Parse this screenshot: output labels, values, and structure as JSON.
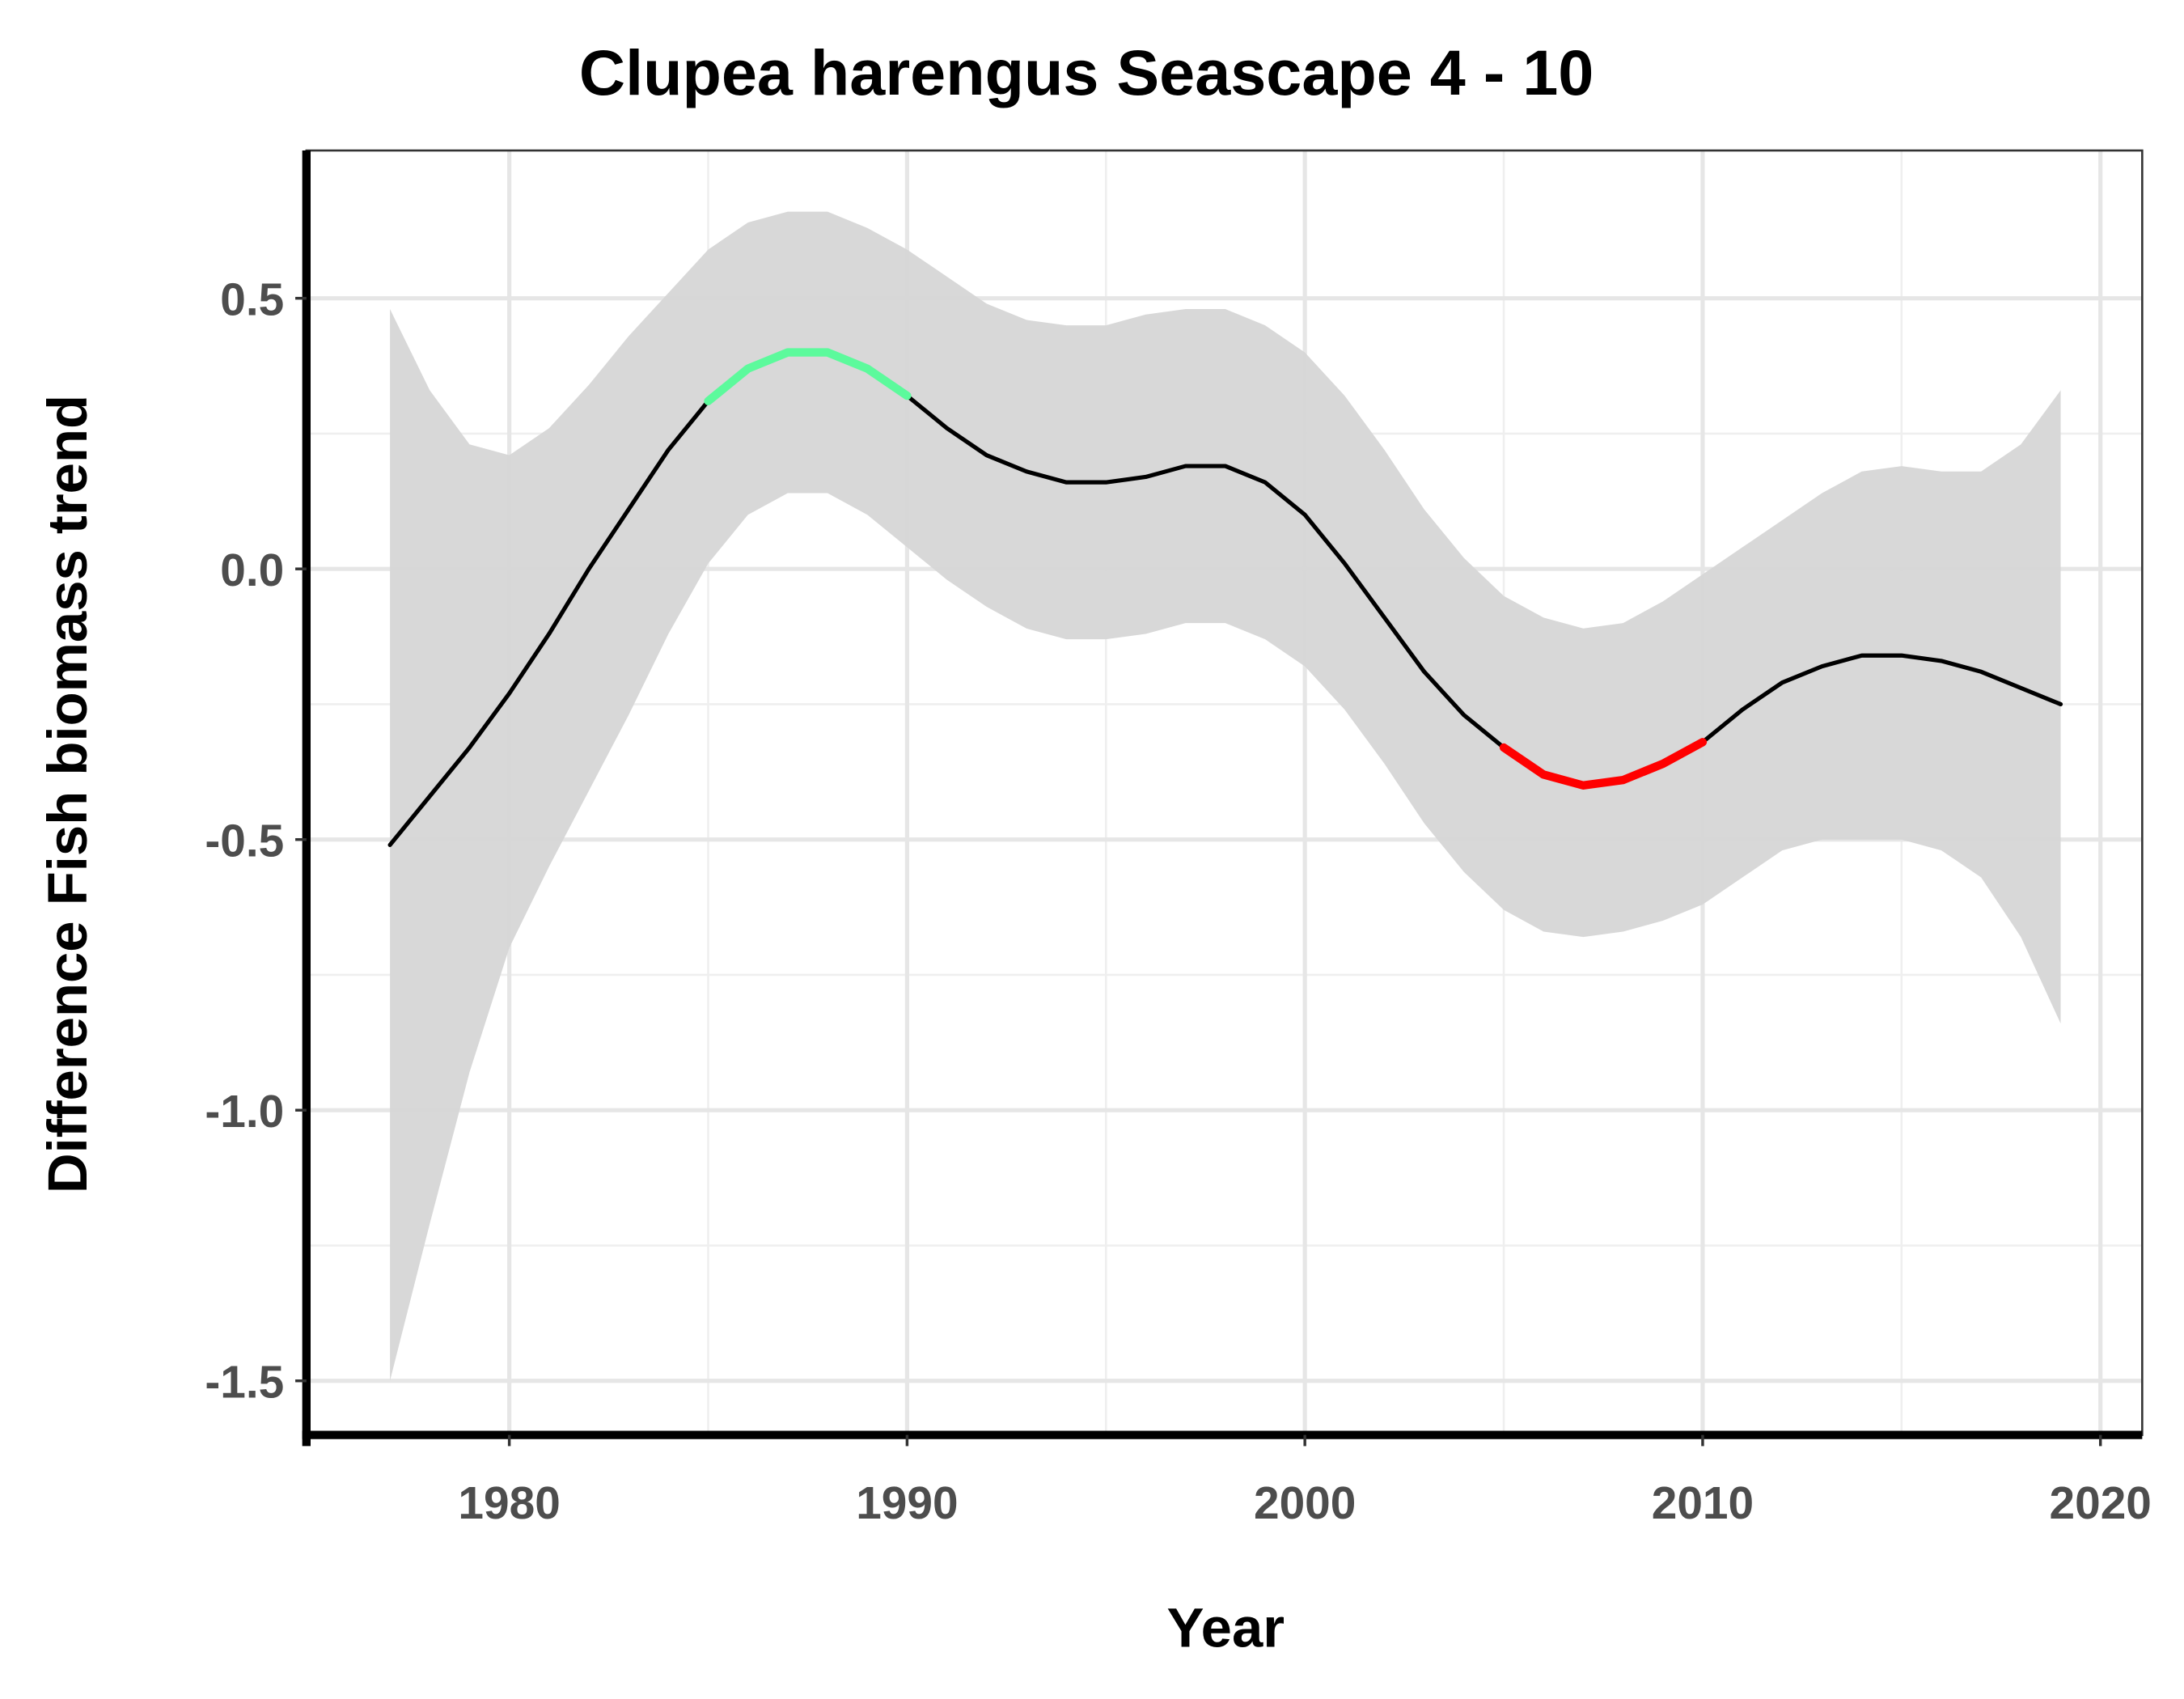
{
  "chart_data": {
    "type": "line",
    "title": "Clupea harengus Seascape 4 - 10",
    "xlabel": "Year",
    "ylabel": "Difference Fish biomass trend",
    "x": [
      1977,
      1978,
      1979,
      1980,
      1981,
      1982,
      1983,
      1984,
      1985,
      1986,
      1987,
      1988,
      1989,
      1990,
      1991,
      1992,
      1993,
      1994,
      1995,
      1996,
      1997,
      1998,
      1999,
      2000,
      2001,
      2002,
      2003,
      2004,
      2005,
      2006,
      2007,
      2008,
      2009,
      2010,
      2011,
      2012,
      2013,
      2014,
      2015,
      2016,
      2017,
      2018,
      2019
    ],
    "series": [
      {
        "color": "#000000",
        "values": [
          -0.51,
          -0.42,
          -0.33,
          -0.23,
          -0.12,
          0.0,
          0.11,
          0.22,
          0.31,
          0.37,
          0.4,
          0.4,
          0.37,
          0.32,
          0.26,
          0.21,
          0.18,
          0.16,
          0.16,
          0.17,
          0.19,
          0.19,
          0.16,
          0.1,
          0.01,
          -0.09,
          -0.19,
          -0.27,
          -0.33,
          -0.38,
          -0.4,
          -0.39,
          -0.36,
          -0.32,
          -0.26,
          -0.21,
          -0.18,
          -0.16,
          -0.16,
          -0.17,
          -0.19,
          -0.22,
          -0.25
        ]
      }
    ],
    "band": {
      "color": "#d6d6d6",
      "upper": [
        0.48,
        0.33,
        0.23,
        0.21,
        0.26,
        0.34,
        0.43,
        0.51,
        0.59,
        0.64,
        0.66,
        0.66,
        0.63,
        0.59,
        0.54,
        0.49,
        0.46,
        0.45,
        0.45,
        0.47,
        0.48,
        0.48,
        0.45,
        0.4,
        0.32,
        0.22,
        0.11,
        0.02,
        -0.05,
        -0.09,
        -0.11,
        -0.1,
        -0.06,
        -0.01,
        0.04,
        0.09,
        0.14,
        0.18,
        0.19,
        0.18,
        0.18,
        0.23,
        0.33
      ],
      "lower": [
        -1.5,
        -1.21,
        -0.93,
        -0.7,
        -0.55,
        -0.41,
        -0.27,
        -0.12,
        0.01,
        0.1,
        0.14,
        0.14,
        0.1,
        0.04,
        -0.02,
        -0.07,
        -0.11,
        -0.13,
        -0.13,
        -0.12,
        -0.1,
        -0.1,
        -0.13,
        -0.18,
        -0.26,
        -0.36,
        -0.47,
        -0.56,
        -0.63,
        -0.67,
        -0.68,
        -0.67,
        -0.65,
        -0.62,
        -0.57,
        -0.52,
        -0.5,
        -0.5,
        -0.5,
        -0.52,
        -0.57,
        -0.68,
        -0.84
      ]
    },
    "highlights": [
      {
        "color": "#5cfa9c",
        "x": [
          1985,
          1986,
          1987,
          1988,
          1989,
          1990
        ],
        "values": [
          0.31,
          0.37,
          0.4,
          0.4,
          0.37,
          0.32
        ]
      },
      {
        "color": "#ff0000",
        "x": [
          2005,
          2006,
          2007,
          2008,
          2009,
          2010
        ],
        "values": [
          -0.33,
          -0.38,
          -0.4,
          -0.39,
          -0.36,
          -0.32
        ]
      }
    ],
    "xlim": [
      1974.9,
      2021.05
    ],
    "ylim": [
      -1.6,
      0.773
    ],
    "xticks": [
      1980,
      1990,
      2000,
      2010,
      2020
    ],
    "yticks": [
      {
        "value": 0.5,
        "label": "0.5"
      },
      {
        "value": 0,
        "label": "0.0"
      },
      {
        "value": -0.5,
        "label": "-0.5"
      },
      {
        "value": -1,
        "label": "-1.0"
      },
      {
        "value": -1.5,
        "label": "-1.5"
      }
    ],
    "xminor": [
      1985,
      1995,
      2005,
      2015
    ],
    "yminor": [
      0.25,
      -0.25,
      -0.75,
      -1.25
    ],
    "grid": true
  }
}
